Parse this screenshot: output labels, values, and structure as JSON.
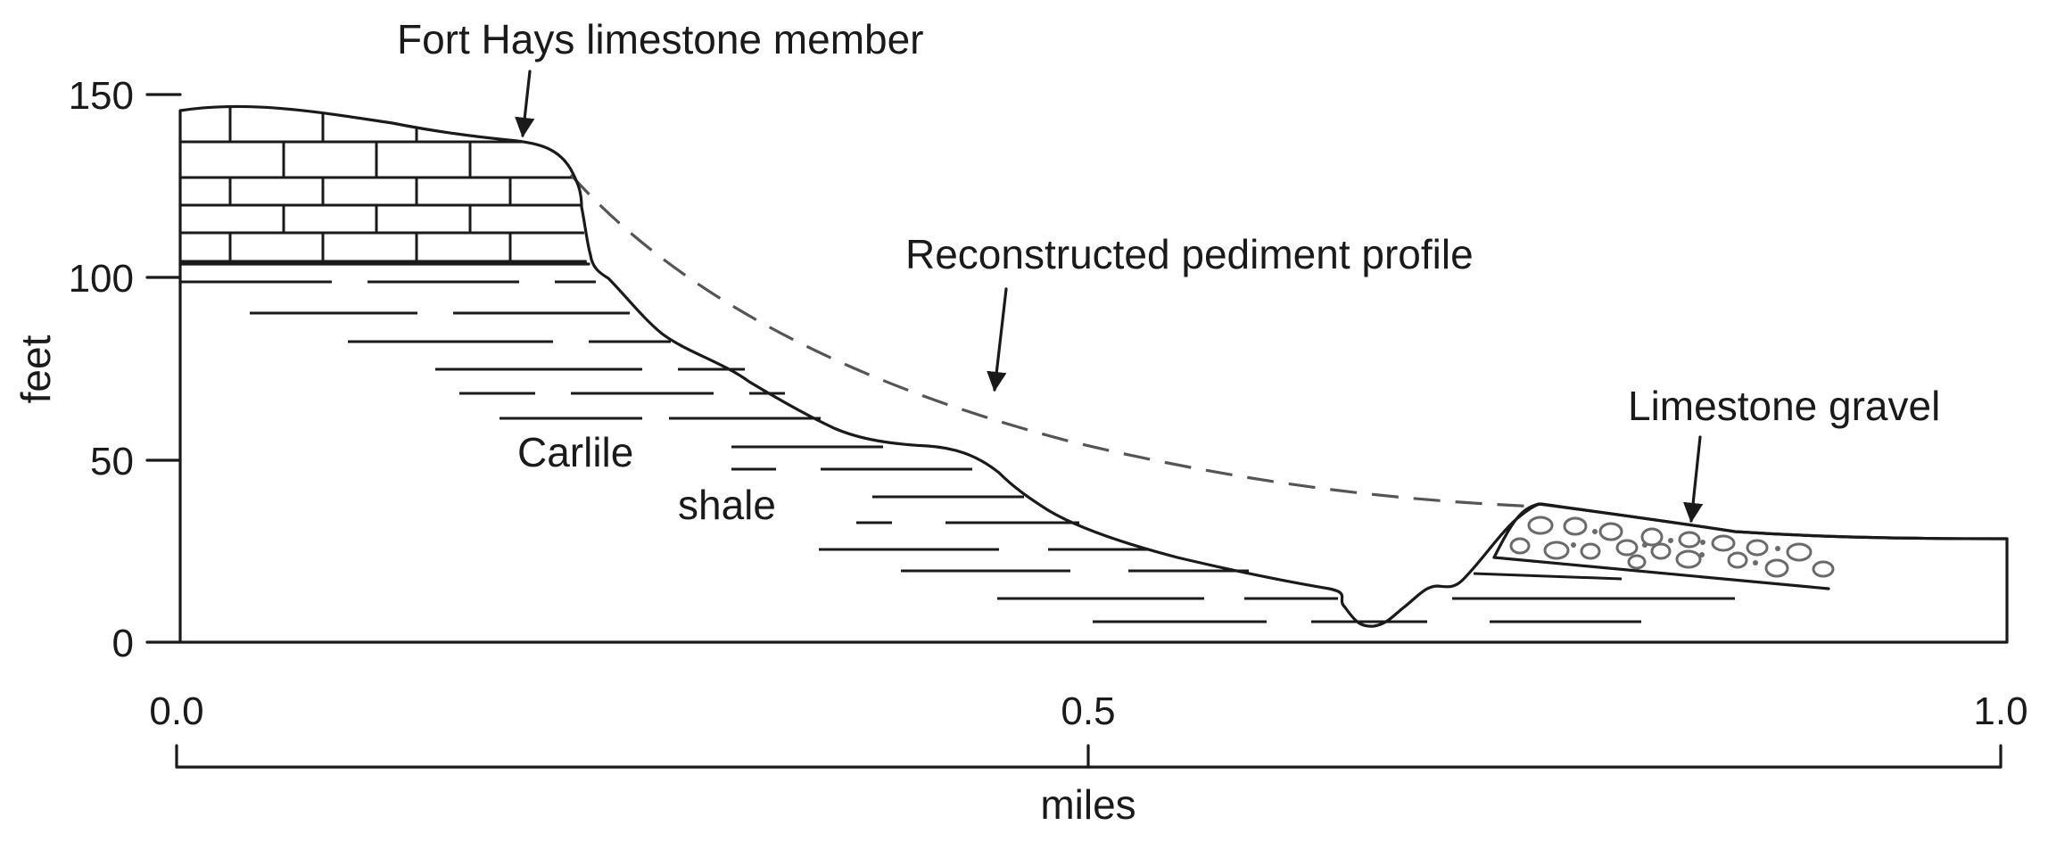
{
  "labels": {
    "fort_hays": "Fort Hays limestone member",
    "pediment": "Reconstructed pediment profile",
    "gravel": "Limestone gravel",
    "carlile": "Carlile",
    "shale": "shale"
  },
  "y_axis": {
    "label": "feet",
    "ticks": [
      "0",
      "50",
      "100",
      "150"
    ]
  },
  "x_axis": {
    "label": "miles",
    "ticks": [
      "0.0",
      "0.5",
      "1.0"
    ]
  }
}
